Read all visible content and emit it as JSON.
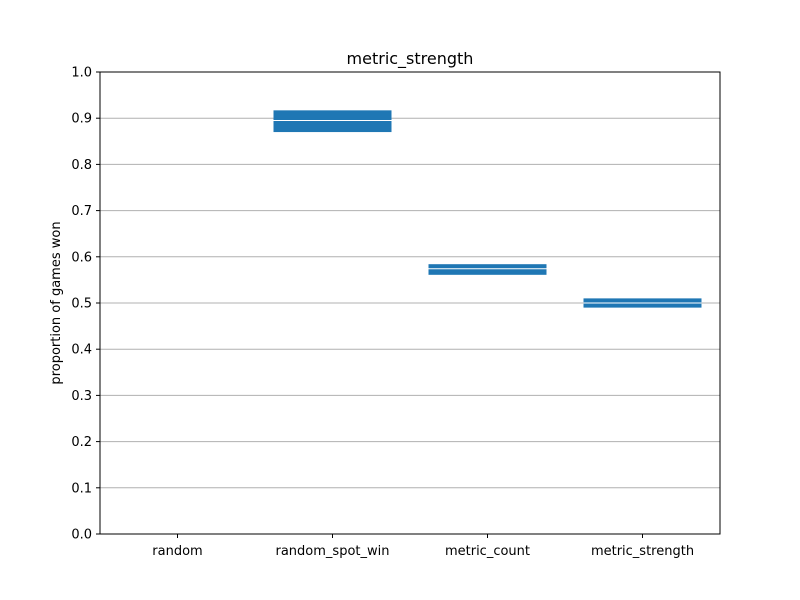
{
  "chart_data": {
    "type": "bar",
    "title": "metric_strength",
    "xlabel": "",
    "ylabel": "proportion of games won",
    "ylim": [
      0,
      1.0
    ],
    "yticks": [
      "0.0",
      "0.1",
      "0.2",
      "0.3",
      "0.4",
      "0.5",
      "0.6",
      "0.7",
      "0.8",
      "0.9",
      "1.0"
    ],
    "grid": "horizontal",
    "categories": [
      "random",
      "random_spot_win",
      "metric_count",
      "metric_strength"
    ],
    "ranges": [
      {
        "low": null,
        "high": null,
        "mid": null
      },
      {
        "low": 0.87,
        "high": 0.917,
        "mid": 0.895
      },
      {
        "low": 0.561,
        "high": 0.584,
        "mid": 0.574
      },
      {
        "low": 0.49,
        "high": 0.51,
        "mid": 0.5
      }
    ],
    "bar_color": "#1f77b4"
  }
}
